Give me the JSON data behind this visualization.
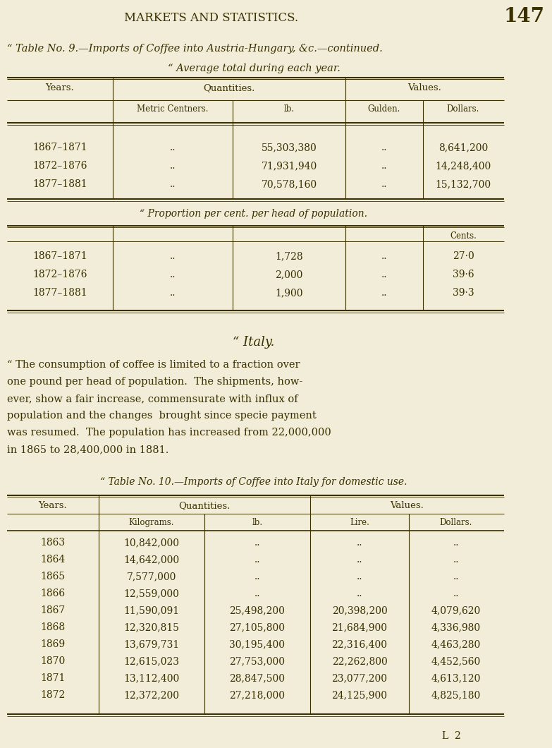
{
  "bg_color": "#f2edd8",
  "text_color": "#3a3000",
  "page_number": "147",
  "header": "MARKETS AND STATISTICS.",
  "table9_title1": "“ Table No. 9.—Imports of Coffee into Austria-Hungary, &c.—continued.",
  "table9_title2": "“ Average total during each year.",
  "table9_rows": [
    [
      "1867–1871",
      "..",
      "55,303,380",
      "..",
      "8,641,200"
    ],
    [
      "1872–1876",
      "..",
      "71,931,940",
      "..",
      "14,248,400"
    ],
    [
      "1877–1881",
      "..",
      "70,578,160",
      "..",
      "15,132,700"
    ]
  ],
  "table9b_title": "“ Proportion per cent. per head of population.",
  "table9b_rows": [
    [
      "1867–1871",
      "..",
      "1,728",
      "..",
      "27·0"
    ],
    [
      "1872–1876",
      "..",
      "2,000",
      "..",
      "39·6"
    ],
    [
      "1877–1881",
      "..",
      "1,900",
      "..",
      "39·3"
    ]
  ],
  "italy_title": "“ Italy.",
  "italy_lines": [
    "“ The consumption of coffee is limited to a fraction over",
    "one pound per head of population.  The shipments, how-",
    "ever, show a fair increase, commensurate with influx of",
    "population and the changes  brought since specie payment",
    "was resumed.  The population has increased from 22,000,000",
    "in 1865 to 28,400,000 in 1881."
  ],
  "table10_title": "“ Table No. 10.—Imports of Coffee into Italy for domestic use.",
  "table10_rows": [
    [
      "1863",
      "10,842,000",
      "..",
      "..",
      ".."
    ],
    [
      "1864",
      "14,642,000",
      "..",
      "..",
      ".."
    ],
    [
      "1865",
      "7,577,000",
      "..",
      "..",
      ".."
    ],
    [
      "1866",
      "12,559,000",
      "..",
      "..",
      ".."
    ],
    [
      "1867",
      "11,590,091",
      "25,498,200",
      "20,398,200",
      "4,079,620"
    ],
    [
      "1868",
      "12,320,815",
      "27,105,800",
      "21,684,900",
      "4,336,980"
    ],
    [
      "1869",
      "13,679,731",
      "30,195,400",
      "22,316,400",
      "4,463,280"
    ],
    [
      "1870",
      "12,615,023",
      "27,753,000",
      "22,262,800",
      "4,452,560"
    ],
    [
      "1871",
      "13,112,400",
      "28,847,500",
      "23,077,200",
      "4,613,120"
    ],
    [
      "1872",
      "12,372,200",
      "27,218,000",
      "24,125,900",
      "4,825,180"
    ]
  ],
  "footer": "L  2"
}
